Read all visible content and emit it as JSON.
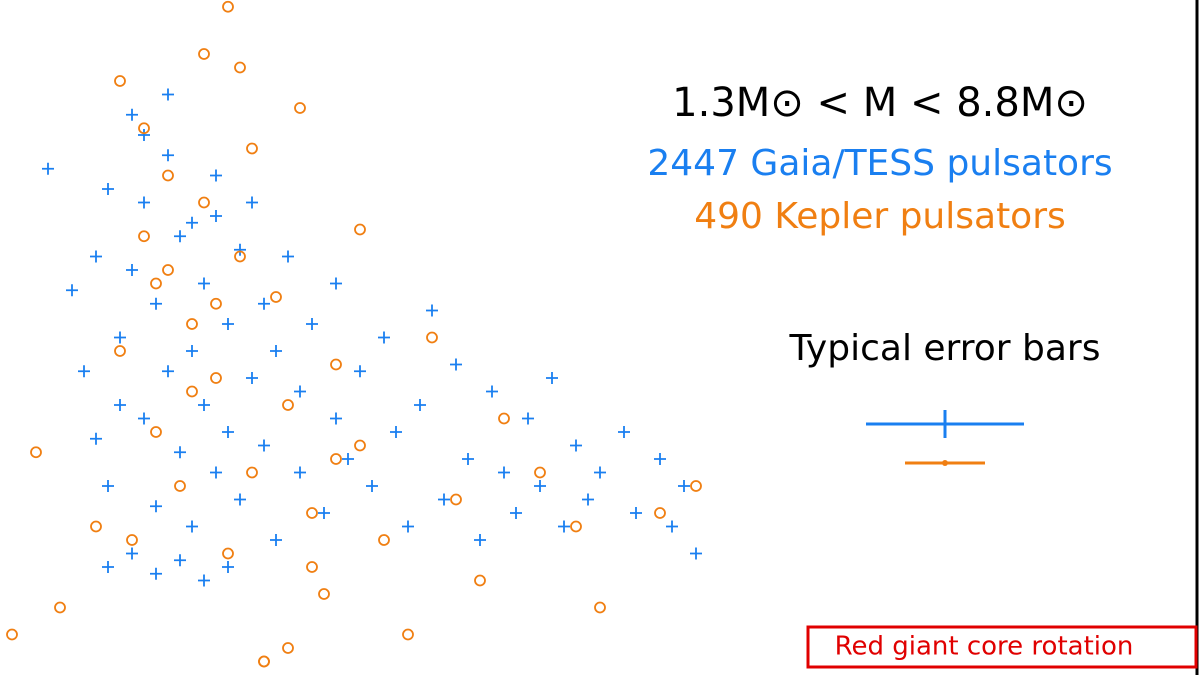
{
  "chart_data": {
    "type": "scatter",
    "title": "1.3M⊙ < M < 8.8M⊙",
    "xlim": [
      0,
      100
    ],
    "ylim": [
      0,
      100
    ],
    "legend": "upper right",
    "annotations": [
      "Typical error bars",
      "Red giant core rotation"
    ],
    "series": [
      {
        "name": "2447 Gaia/TESS pulsators",
        "color": "#1a7ff0",
        "marker": "plus",
        "x": [
          4,
          6,
          7,
          8,
          8,
          9,
          9,
          10,
          10,
          11,
          11,
          12,
          12,
          13,
          13,
          14,
          14,
          15,
          15,
          16,
          16,
          17,
          17,
          18,
          18,
          19,
          19,
          20,
          20,
          21,
          21,
          22,
          22,
          23,
          23,
          24,
          25,
          25,
          26,
          27,
          28,
          28,
          29,
          30,
          31,
          32,
          33,
          34,
          35,
          36,
          37,
          38,
          39,
          40,
          41,
          42,
          43,
          44,
          45,
          46,
          47,
          48,
          49,
          50,
          52,
          53,
          55,
          56,
          57,
          58,
          9,
          11,
          13,
          15,
          17,
          19,
          12,
          14,
          16,
          18
        ],
        "y": [
          75,
          57,
          45,
          62,
          35,
          72,
          28,
          50,
          40,
          83,
          60,
          38,
          70,
          25,
          55,
          45,
          86,
          33,
          65,
          48,
          22,
          58,
          40,
          74,
          30,
          52,
          36,
          63,
          26,
          44,
          70,
          34,
          55,
          20,
          48,
          62,
          30,
          42,
          52,
          24,
          38,
          58,
          32,
          45,
          28,
          50,
          36,
          22,
          40,
          54,
          26,
          46,
          32,
          20,
          42,
          30,
          24,
          38,
          28,
          44,
          22,
          34,
          26,
          30,
          36,
          24,
          32,
          22,
          28,
          18,
          16,
          18,
          15,
          17,
          14,
          16,
          80,
          77,
          67,
          68
        ]
      },
      {
        "name": "490 Kepler pulsators",
        "color": "#f07f12",
        "marker": "circle",
        "x": [
          1,
          3,
          5,
          8,
          10,
          12,
          13,
          14,
          15,
          16,
          17,
          18,
          19,
          20,
          21,
          22,
          23,
          24,
          25,
          26,
          27,
          28,
          30,
          32,
          34,
          36,
          38,
          40,
          42,
          45,
          48,
          50,
          55,
          58,
          10,
          12,
          14,
          16,
          18,
          20,
          22,
          24,
          26,
          28,
          30,
          19,
          21,
          17,
          13,
          11
        ],
        "y": [
          6,
          33,
          10,
          22,
          48,
          81,
          36,
          60,
          28,
          52,
          70,
          44,
          18,
          62,
          30,
          2,
          56,
          40,
          84,
          24,
          12,
          46,
          34,
          20,
          6,
          50,
          26,
          14,
          38,
          30,
          22,
          10,
          24,
          28,
          88,
          65,
          74,
          42,
          55,
          90,
          2,
          4,
          16,
          32,
          66,
          99,
          78,
          92,
          58,
          20
        ]
      }
    ]
  }
}
